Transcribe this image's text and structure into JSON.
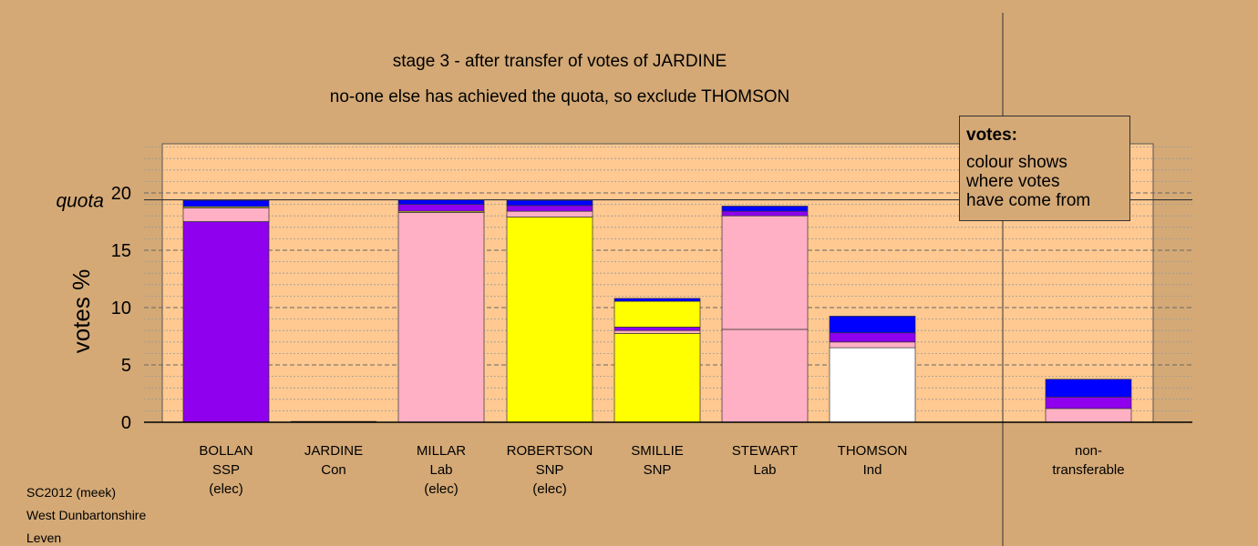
{
  "chart_data": {
    "type": "bar",
    "title": "stage 3 - after transfer of votes of JARDINE",
    "subtitle": "no-one else has achieved the quota, so exclude THOMSON",
    "ylabel": "votes %",
    "ylim": [
      0,
      24.3
    ],
    "yticks": [
      "0",
      "5",
      "10",
      "15",
      "20"
    ],
    "quota_label": "quota",
    "quota_value": 19.4,
    "grid": true,
    "categories": [
      {
        "lines": [
          "BOLLAN",
          "SSP",
          "(elec)"
        ]
      },
      {
        "lines": [
          "JARDINE",
          "Con"
        ]
      },
      {
        "lines": [
          "MILLAR",
          "Lab",
          "(elec)"
        ]
      },
      {
        "lines": [
          "ROBERTSON",
          "SNP",
          "(elec)"
        ]
      },
      {
        "lines": [
          "SMILLIE",
          "SNP"
        ]
      },
      {
        "lines": [
          "STEWART",
          "Lab"
        ]
      },
      {
        "lines": [
          "THOMSON",
          "Ind"
        ]
      },
      {
        "lines": [
          "non-",
          "transferable"
        ]
      }
    ],
    "bars": [
      {
        "segments": [
          {
            "value": 17.5,
            "color": "#8f00ee"
          },
          {
            "value": 1.2,
            "color": "#ffb0c4"
          },
          {
            "value": 0.1,
            "color": "#ffff00"
          },
          {
            "value": 0.55,
            "color": "#0000ff"
          }
        ]
      },
      {
        "segments": []
      },
      {
        "segments": [
          {
            "value": 18.3,
            "color": "#ffb0c4"
          },
          {
            "value": 0.1,
            "color": "#ffff00"
          },
          {
            "value": 0.6,
            "color": "#8f00ee"
          },
          {
            "value": 0.4,
            "color": "#0000ff"
          }
        ]
      },
      {
        "segments": [
          {
            "value": 17.9,
            "color": "#ffff00"
          },
          {
            "value": 0.5,
            "color": "#ffb0c4"
          },
          {
            "value": 0.5,
            "color": "#8f00ee"
          },
          {
            "value": 0.45,
            "color": "#0000ff"
          }
        ]
      },
      {
        "segments": [
          {
            "value": 7.75,
            "color": "#ffff00"
          },
          {
            "value": 0.25,
            "color": "#ffb0c4"
          },
          {
            "value": 0.3,
            "color": "#8f00ee"
          },
          {
            "value": 2.25,
            "color": "#ffff00"
          },
          {
            "value": 0.25,
            "color": "#0000ff"
          }
        ]
      },
      {
        "segments": [
          {
            "value": 8.1,
            "color": "#ffb0c4"
          },
          {
            "value": 9.9,
            "color": "#ffb0c4"
          },
          {
            "value": 0.4,
            "color": "#8f00ee"
          },
          {
            "value": 0.45,
            "color": "#0000ff"
          }
        ]
      },
      {
        "segments": [
          {
            "value": 6.5,
            "color": "#ffffff"
          },
          {
            "value": 0.5,
            "color": "#ffb0c4"
          },
          {
            "value": 0.8,
            "color": "#8f00ee"
          },
          {
            "value": 1.45,
            "color": "#0000ff"
          }
        ]
      },
      {
        "segments": [
          {
            "value": 1.2,
            "color": "#ffb0c4"
          },
          {
            "value": 1.0,
            "color": "#8f00ee"
          },
          {
            "value": 1.55,
            "color": "#0000ff"
          }
        ]
      }
    ]
  },
  "legend": {
    "title": "votes:",
    "lines": [
      "colour shows",
      "where votes",
      "have come from"
    ]
  },
  "footer": [
    "SC2012 (meek)",
    "West Dunbartonshire",
    "Leven"
  ]
}
